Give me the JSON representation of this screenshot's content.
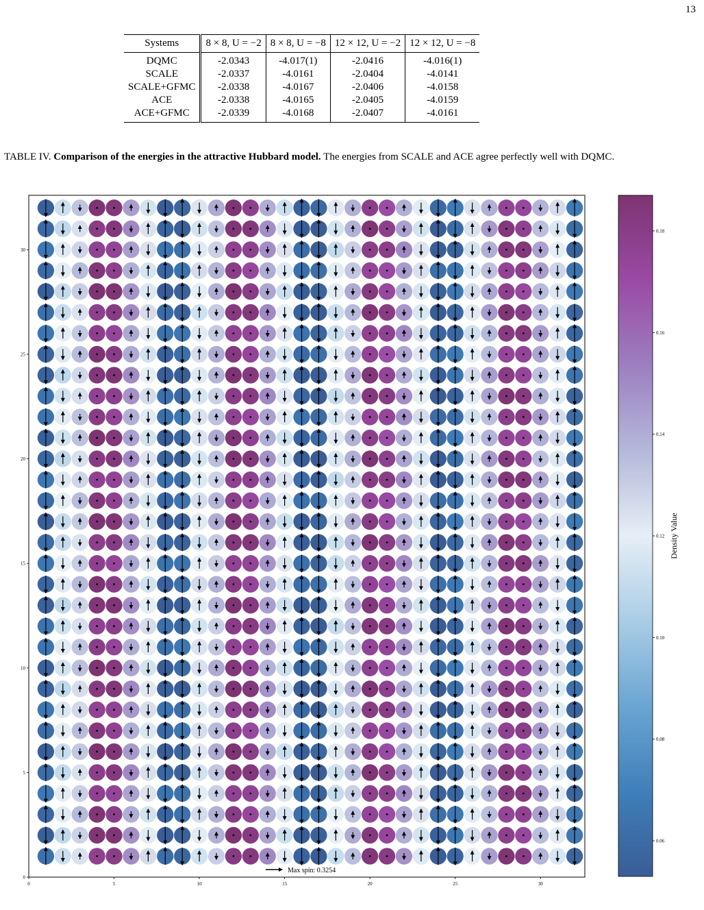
{
  "page_number": "13",
  "table": {
    "columns": [
      "Systems",
      "8 × 8, U = −2",
      "8 × 8, U = −8",
      "12 × 12, U = −2",
      "12 × 12, U = −8"
    ],
    "rows": [
      {
        "system": "DQMC",
        "values": [
          "-2.0343",
          "-4.017(1)",
          "-2.0416",
          "-4.016(1)"
        ]
      },
      {
        "system": "SCALE",
        "values": [
          "-2.0337",
          "-4.0161",
          "-2.0404",
          "-4.0141"
        ]
      },
      {
        "system": "SCALE+GFMC",
        "values": [
          "-2.0338",
          "-4.0167",
          "-2.0406",
          "-4.0158"
        ]
      },
      {
        "system": "ACE",
        "values": [
          "-2.0338",
          "-4.0165",
          "-2.0405",
          "-4.0159"
        ]
      },
      {
        "system": "ACE+GFMC",
        "values": [
          "-2.0339",
          "-4.0168",
          "-2.0407",
          "-4.0161"
        ]
      }
    ]
  },
  "caption": {
    "label": "TABLE IV.",
    "title": "Comparison of the energies in the attractive Hubbard model.",
    "text": "The energies from SCALE and ACE agree perfectly well with DQMC."
  },
  "chart_data": {
    "type": "scatter",
    "grid_size": 32,
    "xlim": [
      0,
      32.6
    ],
    "ylim": [
      0,
      32.6
    ],
    "x_ticks": [
      0,
      5,
      10,
      15,
      20,
      25,
      30
    ],
    "y_ticks": [
      0,
      5,
      10,
      15,
      20,
      25,
      30
    ],
    "column_density": [
      0.06,
      0.115,
      0.13,
      0.182,
      0.18,
      0.145,
      0.12,
      0.058,
      0.06,
      0.12,
      0.135,
      0.182,
      0.178,
      0.145,
      0.118,
      0.058,
      0.056,
      0.116,
      0.135,
      0.18,
      0.175,
      0.145,
      0.12,
      0.056,
      0.062,
      0.12,
      0.14,
      0.18,
      0.178,
      0.14,
      0.122,
      0.062
    ],
    "column_spin": [
      0.33,
      -0.2,
      0.12,
      0.02,
      0.02,
      -0.12,
      0.2,
      0.33,
      -0.33,
      0.2,
      -0.12,
      -0.02,
      0.02,
      0.12,
      -0.2,
      -0.33,
      0.33,
      -0.2,
      0.12,
      0.02,
      -0.02,
      -0.12,
      0.2,
      0.33,
      -0.33,
      0.2,
      -0.12,
      0.02,
      -0.02,
      0.12,
      -0.2,
      -0.33
    ],
    "legend_label": "Max spin: 0.3254",
    "colorbar": {
      "label": "Density Value",
      "min": 0.053,
      "max": 0.187,
      "ticks": [
        "0.06",
        "0.08",
        "0.10",
        "0.12",
        "0.14",
        "0.16",
        "0.18"
      ],
      "colors": [
        "#3a5d96",
        "#3f7fba",
        "#6aa5d2",
        "#a9cde6",
        "#e6eef5",
        "#b4b8da",
        "#9c7fc0",
        "#9a4aa4",
        "#7e3472"
      ]
    }
  }
}
